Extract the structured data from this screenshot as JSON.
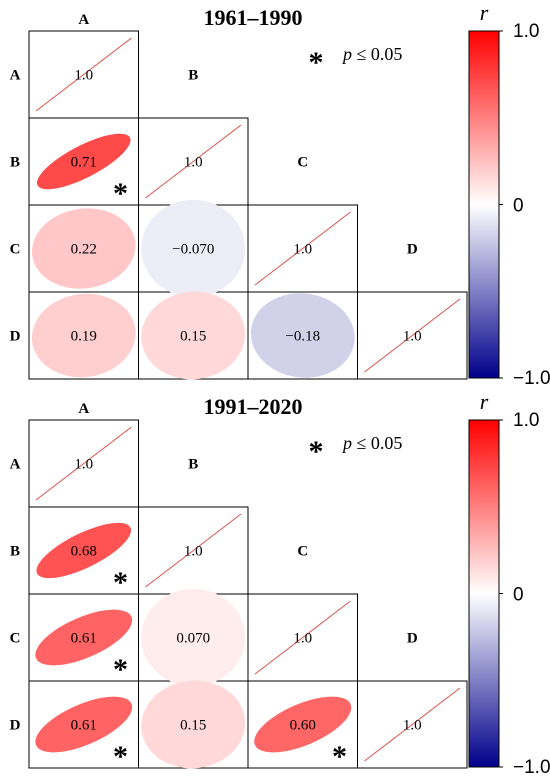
{
  "chart_data": [
    {
      "type": "heatmap",
      "title": "1961–1990",
      "variables": [
        "A",
        "B",
        "C",
        "D"
      ],
      "cells": [
        {
          "row": "A",
          "col": "A",
          "r": 1.0,
          "label": "1.0",
          "sig": false
        },
        {
          "row": "B",
          "col": "A",
          "r": 0.71,
          "label": "0.71",
          "sig": true
        },
        {
          "row": "B",
          "col": "B",
          "r": 1.0,
          "label": "1.0",
          "sig": false
        },
        {
          "row": "C",
          "col": "A",
          "r": 0.22,
          "label": "0.22",
          "sig": false
        },
        {
          "row": "C",
          "col": "B",
          "r": -0.07,
          "label": "−0.070",
          "sig": false
        },
        {
          "row": "C",
          "col": "C",
          "r": 1.0,
          "label": "1.0",
          "sig": false
        },
        {
          "row": "D",
          "col": "A",
          "r": 0.19,
          "label": "0.19",
          "sig": false
        },
        {
          "row": "D",
          "col": "B",
          "r": 0.15,
          "label": "0.15",
          "sig": false
        },
        {
          "row": "D",
          "col": "C",
          "r": -0.18,
          "label": "−0.18",
          "sig": false
        },
        {
          "row": "D",
          "col": "D",
          "r": 1.0,
          "label": "1.0",
          "sig": false
        }
      ],
      "significance_note": {
        "star": "*",
        "var": "p",
        "text": " ≤ 0.05"
      },
      "colorbar": {
        "title": "r",
        "ticks": [
          "1.0",
          "0",
          "−1.0"
        ],
        "range": [
          -1,
          1
        ]
      }
    },
    {
      "type": "heatmap",
      "title": "1991–2020",
      "variables": [
        "A",
        "B",
        "C",
        "D"
      ],
      "cells": [
        {
          "row": "A",
          "col": "A",
          "r": 1.0,
          "label": "1.0",
          "sig": false
        },
        {
          "row": "B",
          "col": "A",
          "r": 0.68,
          "label": "0.68",
          "sig": true
        },
        {
          "row": "B",
          "col": "B",
          "r": 1.0,
          "label": "1.0",
          "sig": false
        },
        {
          "row": "C",
          "col": "A",
          "r": 0.61,
          "label": "0.61",
          "sig": true
        },
        {
          "row": "C",
          "col": "B",
          "r": 0.07,
          "label": "0.070",
          "sig": false
        },
        {
          "row": "C",
          "col": "C",
          "r": 1.0,
          "label": "1.0",
          "sig": false
        },
        {
          "row": "D",
          "col": "A",
          "r": 0.61,
          "label": "0.61",
          "sig": true
        },
        {
          "row": "D",
          "col": "B",
          "r": 0.15,
          "label": "0.15",
          "sig": false
        },
        {
          "row": "D",
          "col": "C",
          "r": 0.6,
          "label": "0.60",
          "sig": true
        },
        {
          "row": "D",
          "col": "D",
          "r": 1.0,
          "label": "1.0",
          "sig": false
        }
      ],
      "significance_note": {
        "star": "*",
        "var": "p",
        "text": " ≤ 0.05"
      },
      "colorbar": {
        "title": "r",
        "ticks": [
          "1.0",
          "0",
          "−1.0"
        ],
        "range": [
          -1,
          1
        ]
      }
    }
  ],
  "colors": {
    "positive": "#ff0000",
    "neutral": "#ffffff",
    "negative": "#00008b",
    "diagonal_line": "#d9534f",
    "border": "#000000"
  }
}
